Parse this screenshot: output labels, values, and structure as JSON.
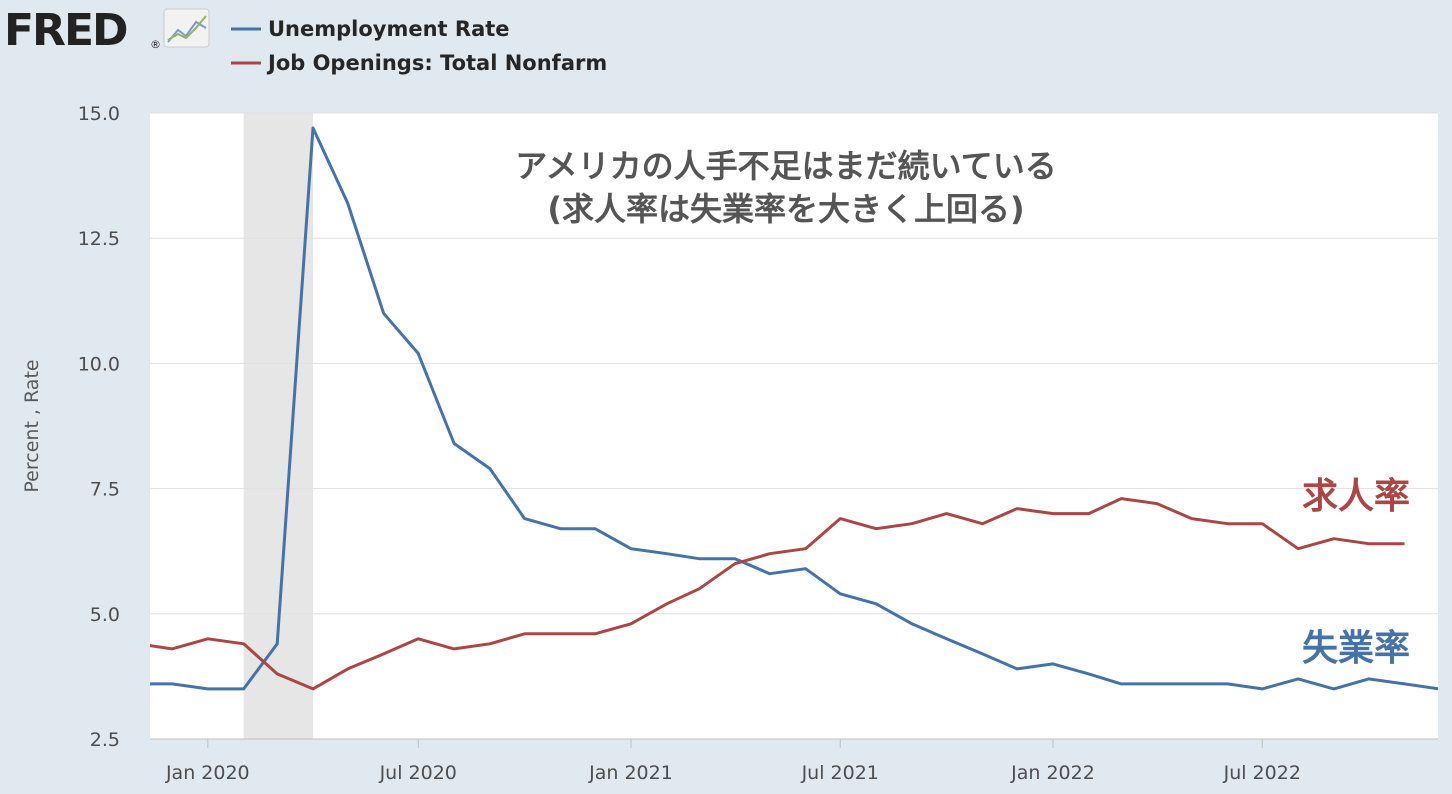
{
  "brand": {
    "logo_text": "FRED",
    "registered_mark": "®",
    "logo_icon": "line-chart-icon"
  },
  "colors": {
    "unemployment": "#4572a7",
    "job_openings": "#aa4643",
    "plot_background": "#ffffff",
    "page_background": "#e1e9f0",
    "recession_band": "#e6e6e6",
    "grid": "#e0e0e0"
  },
  "chart_data": {
    "type": "line",
    "title": "アメリカの人手不足はまだ続いている",
    "subtitle": "(求人率は失業率を大きく上回る)",
    "xlabel": "",
    "ylabel": "Percent , Rate",
    "ylim": [
      2.5,
      15.0
    ],
    "yticks": [
      "2.5",
      "5.0",
      "7.5",
      "10.0",
      "12.5",
      "15.0"
    ],
    "xlim": [
      "2019-11-12",
      "2022-11-30"
    ],
    "xticks": [
      {
        "label": "Jan 2020",
        "date": "2020-01-01"
      },
      {
        "label": "Jul 2020",
        "date": "2020-07-01"
      },
      {
        "label": "Jan 2021",
        "date": "2021-01-01"
      },
      {
        "label": "Jul 2021",
        "date": "2021-07-01"
      },
      {
        "label": "Jan 2022",
        "date": "2022-01-01"
      },
      {
        "label": "Jul 2022",
        "date": "2022-07-01"
      }
    ],
    "grid": true,
    "legend_position": "top-left",
    "recession": {
      "start": "2020-02-01",
      "end": "2020-04-01"
    },
    "series": [
      {
        "name": "Unemployment Rate",
        "annotation": "失業率",
        "color": "#4572a7",
        "x": [
          "2019-11-01",
          "2019-12-01",
          "2020-01-01",
          "2020-02-01",
          "2020-03-01",
          "2020-04-01",
          "2020-05-01",
          "2020-06-01",
          "2020-07-01",
          "2020-08-01",
          "2020-09-01",
          "2020-10-01",
          "2020-11-01",
          "2020-12-01",
          "2021-01-01",
          "2021-02-01",
          "2021-03-01",
          "2021-04-01",
          "2021-05-01",
          "2021-06-01",
          "2021-07-01",
          "2021-08-01",
          "2021-09-01",
          "2021-10-01",
          "2021-11-01",
          "2021-12-01",
          "2022-01-01",
          "2022-02-01",
          "2022-03-01",
          "2022-04-01",
          "2022-05-01",
          "2022-06-01",
          "2022-07-01",
          "2022-08-01",
          "2022-09-01",
          "2022-10-01",
          "2022-11-01",
          "2022-12-01"
        ],
        "values": [
          3.6,
          3.6,
          3.5,
          3.5,
          4.4,
          14.7,
          13.2,
          11.0,
          10.2,
          8.4,
          7.9,
          6.9,
          6.7,
          6.7,
          6.3,
          6.2,
          6.1,
          6.1,
          5.8,
          5.9,
          5.4,
          5.2,
          4.8,
          4.5,
          4.2,
          3.9,
          4.0,
          3.8,
          3.6,
          3.6,
          3.6,
          3.6,
          3.5,
          3.7,
          3.5,
          3.7,
          3.6,
          3.5
        ]
      },
      {
        "name": "Job Openings: Total Nonfarm",
        "annotation": "求人率",
        "color": "#aa4643",
        "x": [
          "2019-11-01",
          "2019-12-01",
          "2020-01-01",
          "2020-02-01",
          "2020-03-01",
          "2020-04-01",
          "2020-05-01",
          "2020-06-01",
          "2020-07-01",
          "2020-08-01",
          "2020-09-01",
          "2020-10-01",
          "2020-11-01",
          "2020-12-01",
          "2021-01-01",
          "2021-02-01",
          "2021-03-01",
          "2021-04-01",
          "2021-05-01",
          "2021-06-01",
          "2021-07-01",
          "2021-08-01",
          "2021-09-01",
          "2021-10-01",
          "2021-11-01",
          "2021-12-01",
          "2022-01-01",
          "2022-02-01",
          "2022-03-01",
          "2022-04-01",
          "2022-05-01",
          "2022-06-01",
          "2022-07-01",
          "2022-08-01",
          "2022-09-01",
          "2022-10-01",
          "2022-11-01"
        ],
        "values": [
          4.4,
          4.3,
          4.5,
          4.4,
          3.8,
          3.5,
          3.9,
          4.2,
          4.5,
          4.3,
          4.4,
          4.6,
          4.6,
          4.6,
          4.8,
          5.2,
          5.5,
          6.0,
          6.2,
          6.3,
          6.9,
          6.7,
          6.8,
          7.0,
          6.8,
          7.1,
          7.0,
          7.0,
          7.3,
          7.2,
          6.9,
          6.8,
          6.8,
          6.3,
          6.5,
          6.4,
          6.4
        ]
      }
    ]
  }
}
